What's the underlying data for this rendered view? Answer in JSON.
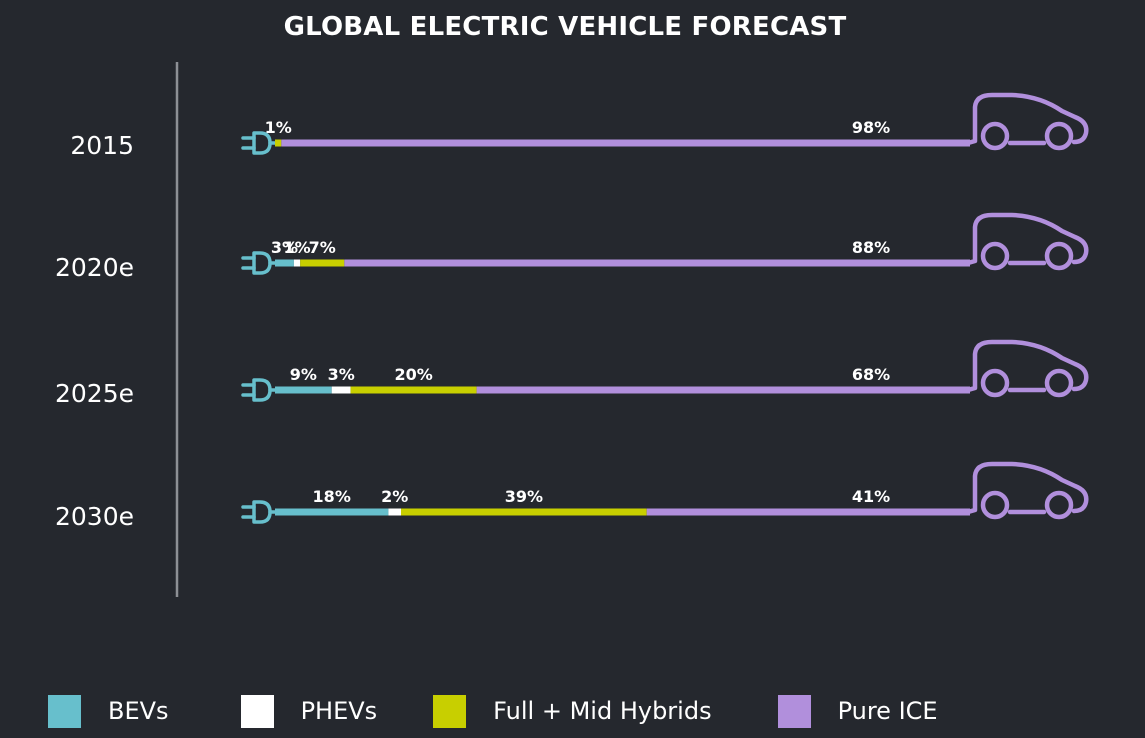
{
  "chart_data": {
    "type": "bar",
    "stacked": true,
    "orientation": "horizontal",
    "title": "GLOBAL ELECTRIC VEHICLE FORECAST",
    "categories": [
      "2015",
      "2020e",
      "2025e",
      "2030e"
    ],
    "series": [
      {
        "name": "BEVs",
        "color": "#67bfcc",
        "values": [
          0,
          3,
          9,
          18
        ],
        "labels": [
          "",
          "3%",
          "9%",
          "18%"
        ]
      },
      {
        "name": "PHEVs",
        "color": "#ffffff",
        "values": [
          0,
          1,
          3,
          2
        ],
        "labels": [
          "",
          "1%",
          "3%",
          "2%"
        ]
      },
      {
        "name": "Full + Mid Hybrids",
        "color": "#c8cf00",
        "values": [
          1,
          7,
          20,
          39
        ],
        "labels": [
          "1%",
          "7%",
          "20%",
          "39%"
        ]
      },
      {
        "name": "Pure ICE",
        "color": "#b18fdc",
        "values": [
          98,
          88,
          68,
          41
        ],
        "labels": [
          "98%",
          "88%",
          "68%",
          "41%"
        ]
      }
    ],
    "legend_placement": "bottom",
    "icons": {
      "start": "plug-icon",
      "end": "car-icon"
    }
  }
}
